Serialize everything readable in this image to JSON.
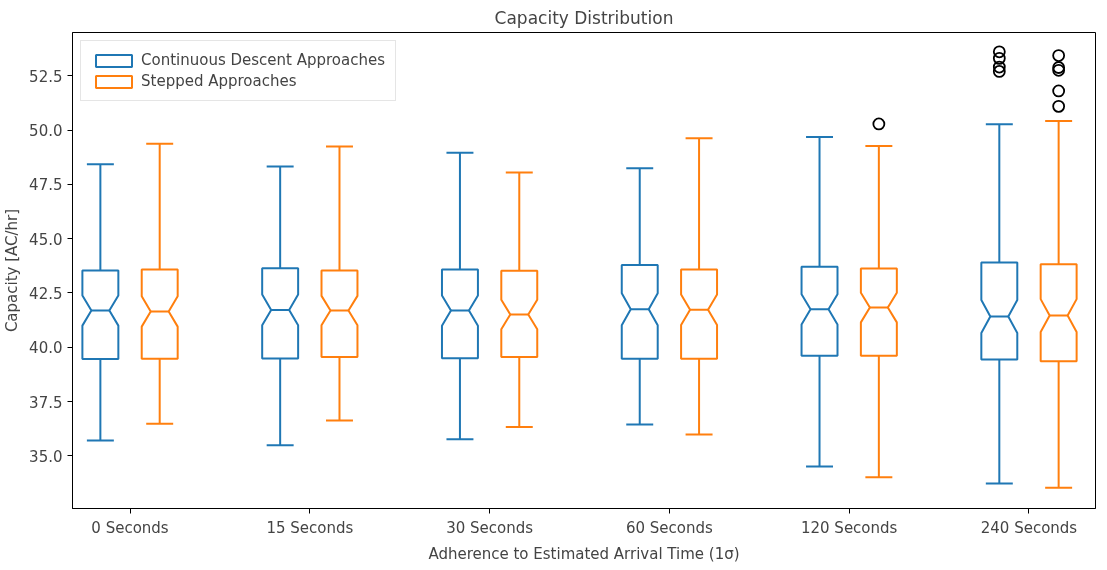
{
  "chart_data": {
    "type": "box",
    "title": "Capacity Distribution",
    "xlabel": "Adherence to Estimated Arrival Time (1σ)",
    "ylabel": "Capacity [AC/hr]",
    "categories": [
      "0 Seconds",
      "15 Seconds",
      "30 Seconds",
      "60 Seconds",
      "120 Seconds",
      "240 Seconds"
    ],
    "series": [
      {
        "name": "Continuous Descent Approaches",
        "color": "#1f77b4",
        "boxes": [
          {
            "low": 35.71,
            "q1": 39.46,
            "median": 41.69,
            "q3": 43.53,
            "high": 48.42
          },
          {
            "low": 35.49,
            "q1": 39.49,
            "median": 41.72,
            "q3": 43.64,
            "high": 48.32
          },
          {
            "low": 35.77,
            "q1": 39.5,
            "median": 41.69,
            "q3": 43.58,
            "high": 48.95
          },
          {
            "low": 36.45,
            "q1": 39.47,
            "median": 41.75,
            "q3": 43.79,
            "high": 48.24
          },
          {
            "low": 34.51,
            "q1": 39.61,
            "median": 41.75,
            "q3": 43.71,
            "high": 49.68
          },
          {
            "low": 33.73,
            "q1": 39.44,
            "median": 41.42,
            "q3": 43.9,
            "high": 50.27,
            "outliers": [
              53.6,
              53.3,
              52.9,
              52.7
            ]
          }
        ]
      },
      {
        "name": "Stepped Approaches",
        "color": "#ff7f0e",
        "boxes": [
          {
            "low": 36.48,
            "q1": 39.47,
            "median": 41.65,
            "q3": 43.58,
            "high": 49.37
          },
          {
            "low": 36.63,
            "q1": 39.55,
            "median": 41.69,
            "q3": 43.53,
            "high": 49.24
          },
          {
            "low": 36.33,
            "q1": 39.55,
            "median": 41.51,
            "q3": 43.52,
            "high": 48.05
          },
          {
            "low": 35.99,
            "q1": 39.47,
            "median": 41.73,
            "q3": 43.58,
            "high": 49.62
          },
          {
            "low": 34.02,
            "q1": 39.61,
            "median": 41.83,
            "q3": 43.63,
            "high": 49.27,
            "outliers": [
              50.28
            ]
          },
          {
            "low": 33.54,
            "q1": 39.36,
            "median": 41.46,
            "q3": 43.82,
            "high": 50.42,
            "outliers": [
              53.43,
              52.88,
              52.75,
              51.8,
              51.09
            ]
          }
        ]
      }
    ],
    "ylim": [
      32.58,
      54.49
    ],
    "yticks": [
      {
        "value": 35,
        "label": "35.0"
      },
      37.5,
      {
        "value": 40,
        "label": "40.0"
      },
      42.5,
      {
        "value": 45,
        "label": "45.0"
      },
      47.5,
      {
        "value": 50,
        "label": "50.0"
      },
      52.5
    ],
    "grid": false,
    "legend": "top left"
  }
}
